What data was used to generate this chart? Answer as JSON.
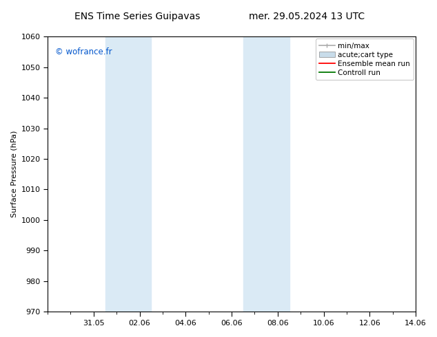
{
  "title_left": "ENS Time Series Guipavas",
  "title_right": "mer. 29.05.2024 13 UTC",
  "ylabel": "Surface Pressure (hPa)",
  "ylim": [
    970,
    1060
  ],
  "yticks": [
    970,
    980,
    990,
    1000,
    1010,
    1020,
    1030,
    1040,
    1050,
    1060
  ],
  "xtick_labels": [
    "31.05",
    "02.06",
    "04.06",
    "06.06",
    "08.06",
    "10.06",
    "12.06",
    "14.06"
  ],
  "xtick_positions": [
    2,
    4,
    6,
    8,
    10,
    12,
    14,
    16
  ],
  "xlim": [
    0,
    16
  ],
  "shaded_bands": [
    {
      "x_start": 2.5,
      "x_end": 4.5
    },
    {
      "x_start": 8.5,
      "x_end": 10.5
    }
  ],
  "watermark": "© wofrance.fr",
  "watermark_color": "#0055cc",
  "background_color": "#ffffff",
  "plot_bg_color": "#ffffff",
  "legend_entries": [
    {
      "label": "min/max"
    },
    {
      "label": "acute;cart type"
    },
    {
      "label": "Ensemble mean run"
    },
    {
      "label": "Controll run"
    }
  ],
  "legend_colors": [
    "#aaaaaa",
    "#c8dcea",
    "#ff0000",
    "#007700"
  ],
  "title_fontsize": 10,
  "axis_fontsize": 8,
  "tick_fontsize": 8,
  "shaded_color": "#daeaf5",
  "legend_fontsize": 7.5
}
